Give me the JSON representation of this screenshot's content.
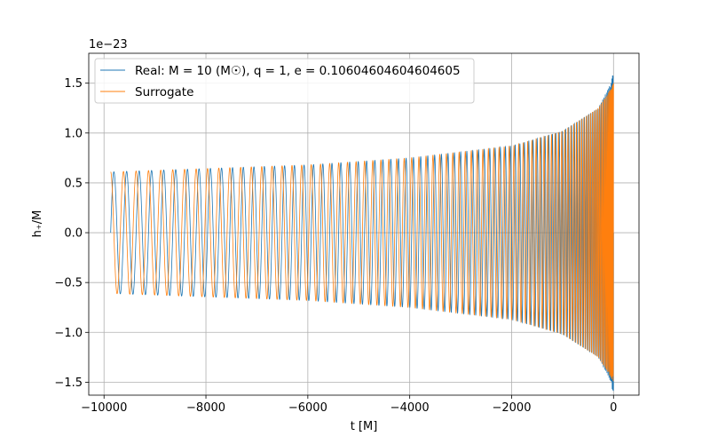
{
  "chart_data": {
    "type": "line",
    "xlabel": "t [M]",
    "ylabel": "h₊/M",
    "y_offset_label": "1e−23",
    "xlim": [
      -10300,
      500
    ],
    "ylim": [
      -1.63,
      1.8
    ],
    "x_ticks": [
      -10000,
      -8000,
      -6000,
      -4000,
      -2000,
      0
    ],
    "x_tick_labels": [
      "−10000",
      "−8000",
      "−6000",
      "−4000",
      "−2000",
      "0"
    ],
    "y_ticks": [
      -1.5,
      -1.0,
      -0.5,
      0.0,
      0.5,
      1.0,
      1.5
    ],
    "y_tick_labels": [
      "−1.5",
      "−1.0",
      "−0.5",
      "0.0",
      "0.5",
      "1.0",
      "1.5"
    ],
    "grid": true,
    "legend_position": "top-left",
    "series": [
      {
        "name": "Real: M = 10 (M☉), q = 1, e = 0.10604604604604605",
        "color": "#1f77b4",
        "t_range": [
          -9870,
          0
        ],
        "approx_cycles": 89,
        "amplitude_envelope": {
          "t": [
            -9870,
            -6000,
            -4000,
            -2000,
            -1000,
            -300,
            -50,
            0
          ],
          "amplitude": [
            0.61,
            0.68,
            0.75,
            0.87,
            1.02,
            1.25,
            1.5,
            1.65
          ]
        },
        "phase_offset": 0.0
      },
      {
        "name": "Surrogate",
        "color": "#ff7f0e",
        "t_range": [
          -9870,
          0
        ],
        "approx_cycles": 89,
        "amplitude_envelope": {
          "t": [
            -9870,
            -6000,
            -4000,
            -2000,
            -1000,
            -300,
            -50,
            0
          ],
          "amplitude": [
            0.61,
            0.68,
            0.75,
            0.87,
            1.02,
            1.25,
            1.45,
            1.5
          ]
        },
        "phase_offset": 1.57
      }
    ]
  }
}
